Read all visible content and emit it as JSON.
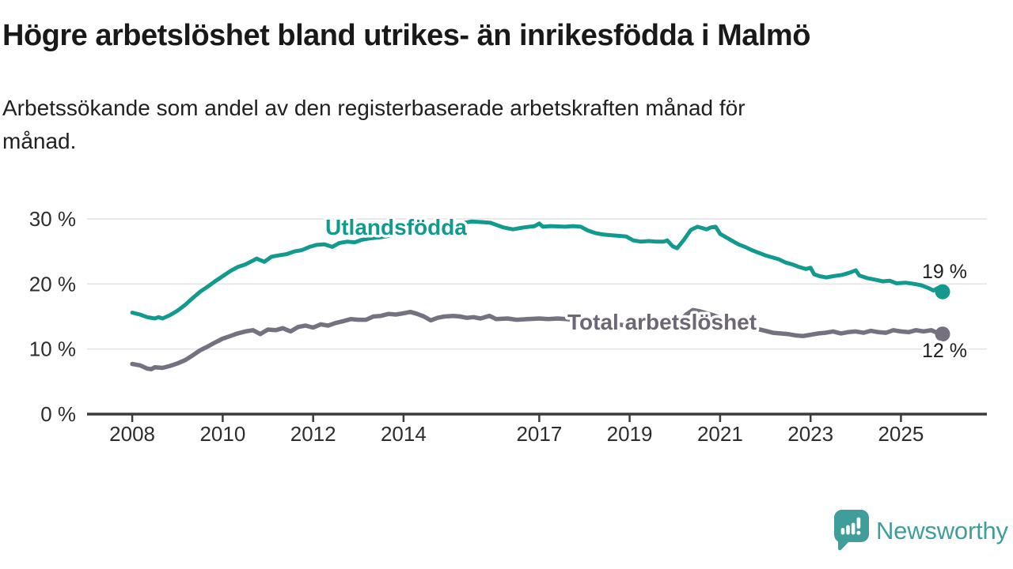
{
  "chart_data": {
    "type": "line",
    "title": "Högre arbetslöshet bland utrikes- än inrikesfödda i Malmö",
    "subtitle_lines": [
      "Arbetssökande som andel av den registerbaserade arbetskraften månad för",
      "månad."
    ],
    "x_axis": {
      "domain": [
        2007.0,
        2026.9
      ],
      "ticks": [
        2008,
        2010,
        2012,
        2014,
        2017,
        2019,
        2021,
        2023,
        2025
      ],
      "grid": false
    },
    "y_axis": {
      "domain": [
        0,
        33.3
      ],
      "ticks": [
        0,
        10,
        20,
        30
      ],
      "tick_suffix": " %",
      "grid": true,
      "gridline_color": "#e4e4e4",
      "axis_color": "#3b3b3b"
    },
    "legend": "inline-labels",
    "series": [
      {
        "name": "Utlandsfödda",
        "inline_label": "Utlandsfödda",
        "end_value_label": "19 %",
        "color": "#129a8e",
        "label_color": "#119a8e",
        "line_width": 5,
        "end_dot": true,
        "data": [
          [
            2008.0,
            15.6
          ],
          [
            2008.17,
            15.3
          ],
          [
            2008.33,
            14.9
          ],
          [
            2008.5,
            14.7
          ],
          [
            2008.58,
            14.9
          ],
          [
            2008.67,
            14.7
          ],
          [
            2008.83,
            15.2
          ],
          [
            2009.0,
            15.9
          ],
          [
            2009.17,
            16.8
          ],
          [
            2009.33,
            17.8
          ],
          [
            2009.5,
            18.8
          ],
          [
            2009.67,
            19.6
          ],
          [
            2009.83,
            20.4
          ],
          [
            2010.0,
            21.2
          ],
          [
            2010.17,
            22.0
          ],
          [
            2010.33,
            22.6
          ],
          [
            2010.5,
            23.0
          ],
          [
            2010.67,
            23.6
          ],
          [
            2010.75,
            23.9
          ],
          [
            2010.92,
            23.4
          ],
          [
            2011.08,
            24.2
          ],
          [
            2011.25,
            24.4
          ],
          [
            2011.42,
            24.6
          ],
          [
            2011.58,
            25.0
          ],
          [
            2011.75,
            25.2
          ],
          [
            2011.92,
            25.7
          ],
          [
            2012.08,
            26.0
          ],
          [
            2012.25,
            26.1
          ],
          [
            2012.42,
            25.7
          ],
          [
            2012.58,
            26.3
          ],
          [
            2012.75,
            26.5
          ],
          [
            2012.92,
            26.4
          ],
          [
            2013.08,
            26.8
          ],
          [
            2013.25,
            27.0
          ],
          [
            2013.5,
            27.2
          ],
          [
            2013.75,
            27.5
          ],
          [
            2014.0,
            27.8
          ],
          [
            2014.25,
            28.2
          ],
          [
            2014.5,
            28.6
          ],
          [
            2014.75,
            28.9
          ],
          [
            2015.0,
            29.1
          ],
          [
            2015.25,
            29.3
          ],
          [
            2015.5,
            29.6
          ],
          [
            2015.75,
            29.5
          ],
          [
            2015.92,
            29.4
          ],
          [
            2016.08,
            29.0
          ],
          [
            2016.2,
            28.7
          ],
          [
            2016.42,
            28.4
          ],
          [
            2016.67,
            28.7
          ],
          [
            2016.9,
            28.9
          ],
          [
            2017.0,
            29.3
          ],
          [
            2017.08,
            28.8
          ],
          [
            2017.25,
            28.9
          ],
          [
            2017.42,
            28.85
          ],
          [
            2017.58,
            28.8
          ],
          [
            2017.75,
            28.9
          ],
          [
            2017.92,
            28.8
          ],
          [
            2018.08,
            28.2
          ],
          [
            2018.25,
            27.8
          ],
          [
            2018.42,
            27.6
          ],
          [
            2018.58,
            27.5
          ],
          [
            2018.75,
            27.4
          ],
          [
            2018.92,
            27.3
          ],
          [
            2019.08,
            26.7
          ],
          [
            2019.25,
            26.5
          ],
          [
            2019.42,
            26.6
          ],
          [
            2019.58,
            26.5
          ],
          [
            2019.75,
            26.5
          ],
          [
            2019.83,
            26.7
          ],
          [
            2019.95,
            25.8
          ],
          [
            2020.05,
            25.5
          ],
          [
            2020.2,
            26.8
          ],
          [
            2020.35,
            28.3
          ],
          [
            2020.5,
            28.8
          ],
          [
            2020.6,
            28.6
          ],
          [
            2020.7,
            28.4
          ],
          [
            2020.8,
            28.7
          ],
          [
            2020.9,
            28.8
          ],
          [
            2021.0,
            27.7
          ],
          [
            2021.1,
            27.3
          ],
          [
            2021.25,
            26.7
          ],
          [
            2021.4,
            26.1
          ],
          [
            2021.55,
            25.7
          ],
          [
            2021.7,
            25.2
          ],
          [
            2021.85,
            24.8
          ],
          [
            2022.0,
            24.4
          ],
          [
            2022.15,
            24.1
          ],
          [
            2022.3,
            23.8
          ],
          [
            2022.45,
            23.3
          ],
          [
            2022.6,
            23.0
          ],
          [
            2022.75,
            22.6
          ],
          [
            2022.9,
            22.3
          ],
          [
            2023.0,
            22.5
          ],
          [
            2023.08,
            21.5
          ],
          [
            2023.2,
            21.2
          ],
          [
            2023.35,
            21.0
          ],
          [
            2023.5,
            21.2
          ],
          [
            2023.7,
            21.4
          ],
          [
            2023.85,
            21.7
          ],
          [
            2024.0,
            22.1
          ],
          [
            2024.08,
            21.3
          ],
          [
            2024.25,
            20.9
          ],
          [
            2024.4,
            20.7
          ],
          [
            2024.6,
            20.4
          ],
          [
            2024.75,
            20.5
          ],
          [
            2024.9,
            20.1
          ],
          [
            2025.1,
            20.2
          ],
          [
            2025.3,
            20.0
          ],
          [
            2025.45,
            19.8
          ],
          [
            2025.6,
            19.4
          ],
          [
            2025.72,
            19.0
          ],
          [
            2025.82,
            19.4
          ],
          [
            2025.92,
            18.8
          ]
        ]
      },
      {
        "name": "Total arbetslöshet",
        "inline_label": "Total arbetslöshet",
        "end_value_label": "12 %",
        "color": "#767180",
        "label_color": "#6c6772",
        "line_width": 5.5,
        "end_dot": true,
        "data": [
          [
            2008.0,
            7.7
          ],
          [
            2008.17,
            7.5
          ],
          [
            2008.33,
            7.0
          ],
          [
            2008.42,
            6.9
          ],
          [
            2008.5,
            7.2
          ],
          [
            2008.67,
            7.1
          ],
          [
            2008.83,
            7.4
          ],
          [
            2009.0,
            7.8
          ],
          [
            2009.17,
            8.3
          ],
          [
            2009.33,
            9.0
          ],
          [
            2009.5,
            9.8
          ],
          [
            2009.67,
            10.4
          ],
          [
            2009.83,
            11.0
          ],
          [
            2010.0,
            11.6
          ],
          [
            2010.17,
            12.0
          ],
          [
            2010.33,
            12.4
          ],
          [
            2010.5,
            12.7
          ],
          [
            2010.67,
            12.9
          ],
          [
            2010.83,
            12.3
          ],
          [
            2011.0,
            13.0
          ],
          [
            2011.17,
            12.9
          ],
          [
            2011.33,
            13.2
          ],
          [
            2011.5,
            12.7
          ],
          [
            2011.67,
            13.4
          ],
          [
            2011.83,
            13.6
          ],
          [
            2012.0,
            13.3
          ],
          [
            2012.17,
            13.8
          ],
          [
            2012.33,
            13.6
          ],
          [
            2012.5,
            14.0
          ],
          [
            2012.67,
            14.3
          ],
          [
            2012.83,
            14.6
          ],
          [
            2013.0,
            14.5
          ],
          [
            2013.17,
            14.5
          ],
          [
            2013.33,
            15.0
          ],
          [
            2013.5,
            15.1
          ],
          [
            2013.67,
            15.4
          ],
          [
            2013.83,
            15.3
          ],
          [
            2014.0,
            15.5
          ],
          [
            2014.15,
            15.7
          ],
          [
            2014.3,
            15.4
          ],
          [
            2014.45,
            15.0
          ],
          [
            2014.6,
            14.4
          ],
          [
            2014.75,
            14.8
          ],
          [
            2014.9,
            15.0
          ],
          [
            2015.1,
            15.1
          ],
          [
            2015.25,
            15.0
          ],
          [
            2015.4,
            14.8
          ],
          [
            2015.55,
            14.9
          ],
          [
            2015.7,
            14.7
          ],
          [
            2015.9,
            15.1
          ],
          [
            2016.05,
            14.6
          ],
          [
            2016.3,
            14.7
          ],
          [
            2016.5,
            14.5
          ],
          [
            2016.75,
            14.6
          ],
          [
            2017.0,
            14.7
          ],
          [
            2017.2,
            14.6
          ],
          [
            2017.4,
            14.7
          ],
          [
            2017.6,
            14.6
          ],
          [
            2017.83,
            14.5
          ],
          [
            2018.08,
            14.2
          ],
          [
            2018.33,
            14.0
          ],
          [
            2018.58,
            13.9
          ],
          [
            2018.83,
            13.7
          ],
          [
            2019.08,
            13.6
          ],
          [
            2019.33,
            13.5
          ],
          [
            2019.58,
            13.6
          ],
          [
            2019.83,
            13.4
          ],
          [
            2019.95,
            13.3
          ],
          [
            2020.1,
            14.0
          ],
          [
            2020.25,
            15.3
          ],
          [
            2020.4,
            16.0
          ],
          [
            2020.55,
            15.8
          ],
          [
            2020.7,
            15.5
          ],
          [
            2020.85,
            15.2
          ],
          [
            2021.0,
            14.8
          ],
          [
            2021.25,
            14.2
          ],
          [
            2021.5,
            13.6
          ],
          [
            2021.75,
            13.2
          ],
          [
            2022.0,
            12.8
          ],
          [
            2022.17,
            12.5
          ],
          [
            2022.33,
            12.4
          ],
          [
            2022.5,
            12.3
          ],
          [
            2022.67,
            12.1
          ],
          [
            2022.83,
            12.0
          ],
          [
            2023.0,
            12.2
          ],
          [
            2023.17,
            12.4
          ],
          [
            2023.33,
            12.5
          ],
          [
            2023.5,
            12.7
          ],
          [
            2023.67,
            12.4
          ],
          [
            2023.83,
            12.6
          ],
          [
            2024.0,
            12.7
          ],
          [
            2024.17,
            12.5
          ],
          [
            2024.33,
            12.8
          ],
          [
            2024.5,
            12.6
          ],
          [
            2024.67,
            12.5
          ],
          [
            2024.83,
            12.9
          ],
          [
            2025.0,
            12.7
          ],
          [
            2025.17,
            12.6
          ],
          [
            2025.33,
            12.9
          ],
          [
            2025.5,
            12.7
          ],
          [
            2025.67,
            12.9
          ],
          [
            2025.8,
            12.5
          ],
          [
            2025.92,
            12.3
          ]
        ]
      }
    ]
  },
  "footer": {
    "brand_name": "Newsworthy",
    "brand_color": "#3f9e9c",
    "icon": "newsworthy-speech-bubble-bar-chart-icon"
  }
}
